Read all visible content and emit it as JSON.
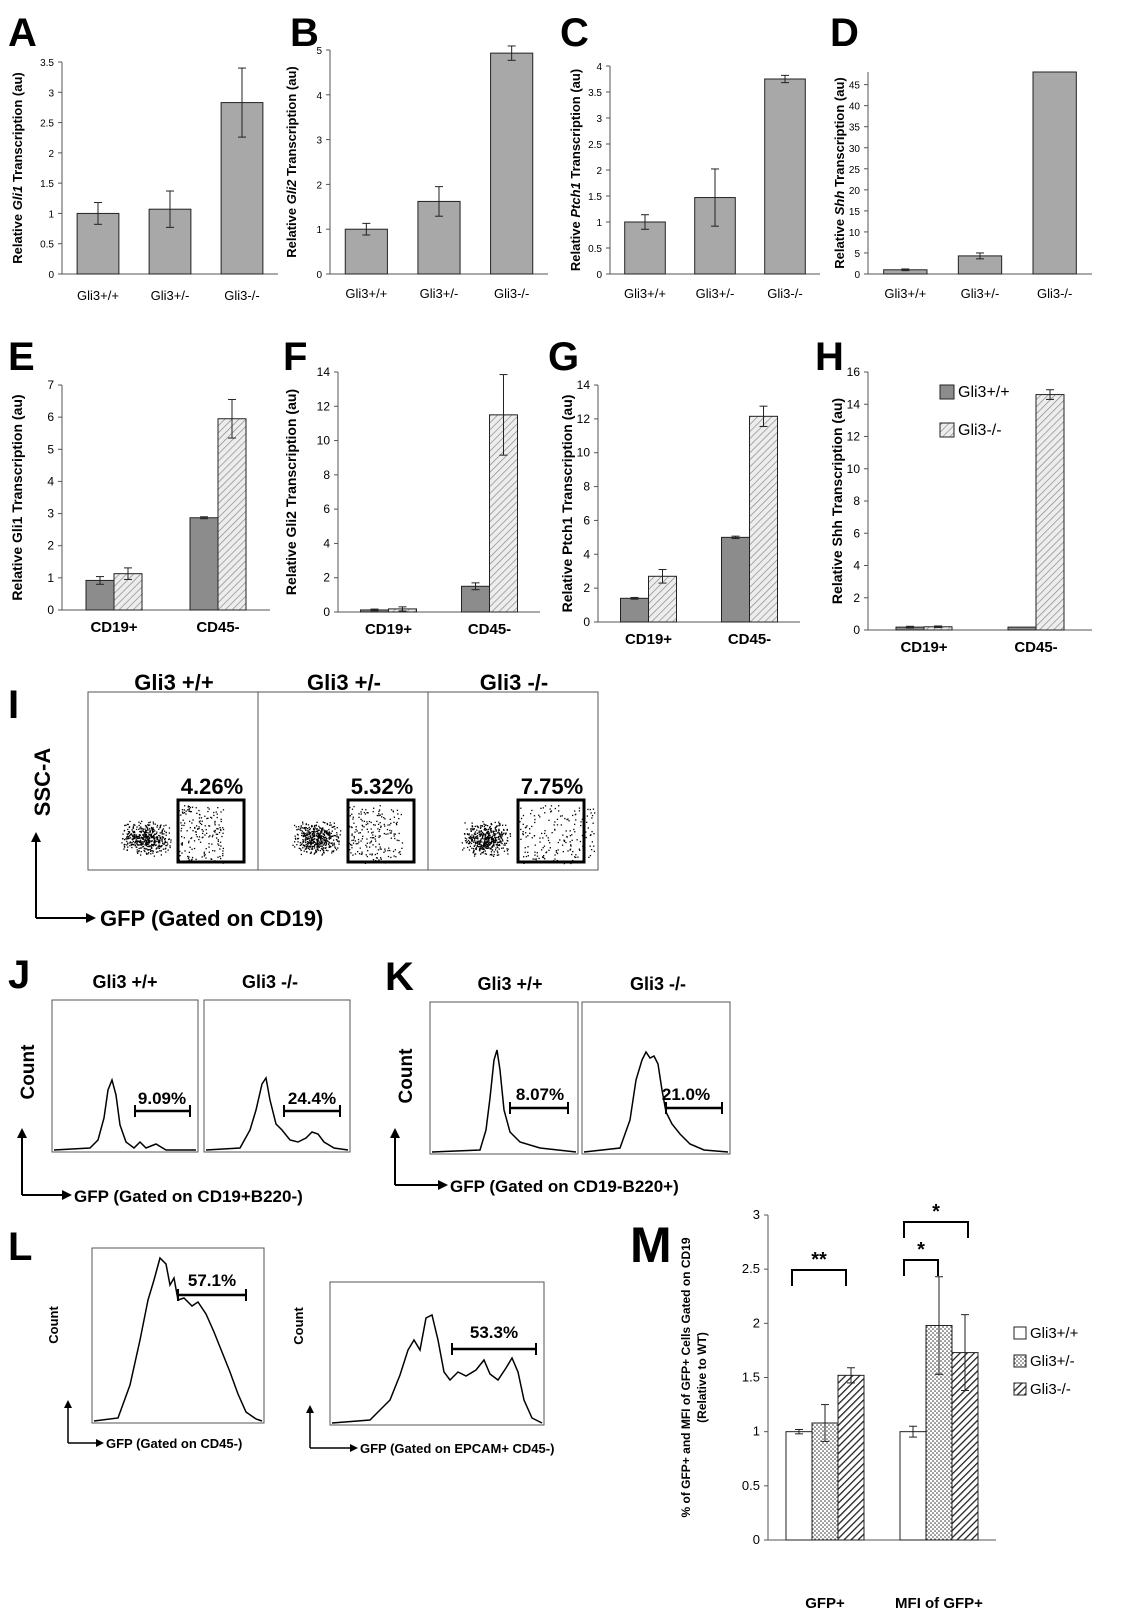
{
  "colors": {
    "gray": "#a8a8a8",
    "dark": "#8c8c8c",
    "line": "#000000",
    "hatch": "#bdbdbd"
  },
  "chart_data": [
    {
      "panel": "A",
      "type": "bar",
      "categories": [
        "Gli3+/+",
        "Gli3+/-",
        "Gli3-/-"
      ],
      "values": [
        1.0,
        1.07,
        2.83
      ],
      "errors": [
        0.18,
        0.3,
        0.57
      ],
      "ylabel_pre": "Relative ",
      "ylabel_gene": "Gli1",
      "ylabel_post": " Transcription (au)",
      "ylim": [
        0,
        3.5
      ],
      "ticks": [
        "0",
        "0.5",
        "1",
        "1.5",
        "2",
        "2.5",
        "3",
        "3.5"
      ]
    },
    {
      "panel": "B",
      "type": "bar",
      "categories": [
        "Gli3+/+",
        "Gli3+/-",
        "Gli3-/-"
      ],
      "values": [
        1.0,
        1.62,
        4.93
      ],
      "errors": [
        0.13,
        0.33,
        0.16
      ],
      "ylabel_pre": "Relative ",
      "ylabel_gene": "Gli2",
      "ylabel_post": " Transcription (au)",
      "ylim": [
        0,
        5
      ],
      "ticks": [
        "0",
        "1",
        "2",
        "3",
        "4",
        "5"
      ]
    },
    {
      "panel": "C",
      "type": "bar",
      "categories": [
        "Gli3+/+",
        "Gli3+/-",
        "Gli3-/-"
      ],
      "values": [
        1.0,
        1.47,
        3.75
      ],
      "errors": [
        0.14,
        0.55,
        0.07
      ],
      "ylabel_pre": "Relative ",
      "ylabel_gene": "Ptch1",
      "ylabel_post": " Transcription (au)",
      "ylim": [
        0,
        4
      ],
      "ticks": [
        "0",
        "0.5",
        "1",
        "1.5",
        "2",
        "2.5",
        "3",
        "3.5",
        "4"
      ]
    },
    {
      "panel": "D",
      "type": "bar",
      "categories": [
        "Gli3+/+",
        "Gli3+/-",
        "Gli3-/-"
      ],
      "values": [
        1.0,
        4.3,
        48.0
      ],
      "errors": [
        0.2,
        0.7,
        0.0
      ],
      "ylabel_pre": "Relative ",
      "ylabel_gene": "Shh",
      "ylabel_post": " Transcription (au)",
      "ylim": [
        0,
        48
      ],
      "ticks": [
        "0",
        "5",
        "10",
        "15",
        "20",
        "25",
        "30",
        "35",
        "40",
        "45"
      ]
    },
    {
      "panel": "E",
      "type": "bar",
      "categories": [
        "CD19+",
        "CD45-"
      ],
      "series": [
        {
          "values": [
            0.92,
            2.87
          ],
          "errors": [
            0.12,
            0.03
          ]
        },
        {
          "values": [
            1.13,
            5.95
          ],
          "errors": [
            0.18,
            0.6
          ]
        }
      ],
      "ylabel": "Relative Gli1 Transcription (au)",
      "ylim": [
        0,
        7
      ],
      "ticks": [
        "0",
        "1",
        "2",
        "3",
        "4",
        "5",
        "6",
        "7"
      ]
    },
    {
      "panel": "F",
      "type": "bar",
      "categories": [
        "CD19+",
        "CD45-"
      ],
      "series": [
        {
          "values": [
            0.12,
            1.5
          ],
          "errors": [
            0.05,
            0.2
          ]
        },
        {
          "values": [
            0.18,
            11.5
          ],
          "errors": [
            0.12,
            2.35
          ]
        }
      ],
      "ylabel": "Relative Gli2 Transcription (au)",
      "ylim": [
        0,
        14
      ],
      "ticks": [
        "0",
        "2",
        "4",
        "6",
        "8",
        "10",
        "12",
        "14"
      ]
    },
    {
      "panel": "G",
      "type": "bar",
      "categories": [
        "CD19+",
        "CD45-"
      ],
      "series": [
        {
          "values": [
            1.4,
            5.0
          ],
          "errors": [
            0.05,
            0.07
          ]
        },
        {
          "values": [
            2.7,
            12.15
          ],
          "errors": [
            0.4,
            0.6
          ]
        }
      ],
      "ylabel": "Relative Ptch1 Transcription (au)",
      "ylim": [
        0,
        14
      ],
      "ticks": [
        "0",
        "2",
        "4",
        "6",
        "8",
        "10",
        "12",
        "14"
      ]
    },
    {
      "panel": "H",
      "type": "bar",
      "categories": [
        "CD19+",
        "CD45-"
      ],
      "series": [
        {
          "name": "Gli3+/+",
          "values": [
            0.18,
            0.18
          ],
          "errors": [
            0.05,
            0.0
          ]
        },
        {
          "name": "Gli3-/-",
          "values": [
            0.2,
            14.6
          ],
          "errors": [
            0.05,
            0.3
          ]
        }
      ],
      "ylabel": "Relative Shh Transcription (au)",
      "ylim": [
        0,
        16
      ],
      "ticks": [
        "0",
        "2",
        "4",
        "6",
        "8",
        "10",
        "12",
        "14",
        "16"
      ]
    },
    {
      "panel": "M",
      "type": "bar",
      "categories": [
        "GFP+",
        "MFI of GFP+"
      ],
      "series": [
        {
          "name": "Gli3+/+",
          "values": [
            1.0,
            1.0
          ],
          "errors": [
            0.02,
            0.05
          ]
        },
        {
          "name": "Gli3+/-",
          "values": [
            1.08,
            1.98
          ],
          "errors": [
            0.17,
            0.45
          ]
        },
        {
          "name": "Gli3-/-",
          "values": [
            1.52,
            1.73
          ],
          "errors": [
            0.07,
            0.35
          ]
        }
      ],
      "ylabel1": "% of GFP+ and MFI of GFP+ Cells Gated on CD19",
      "ylabel2": "(Relative to WT)",
      "ylim": [
        0,
        3
      ],
      "ticks": [
        "0",
        "0.5",
        "1",
        "1.5",
        "2",
        "2.5",
        "3"
      ],
      "sig": [
        "**",
        "*",
        "*"
      ]
    }
  ],
  "flow": {
    "I": {
      "titles": [
        "Gli3 +/+",
        "Gli3 +/-",
        "Gli3 -/-"
      ],
      "percents": [
        "4.26%",
        "5.32%",
        "7.75%"
      ],
      "ylabel": "SSC-A",
      "xlabel": "GFP (Gated on CD19)"
    },
    "J": {
      "titles": [
        "Gli3 +/+",
        "Gli3 -/-"
      ],
      "percents": [
        "9.09%",
        "24.4%"
      ],
      "ylabel": "Count",
      "xlabel": "GFP (Gated on CD19+B220-)"
    },
    "K": {
      "titles": [
        "Gli3 +/+",
        "Gli3 -/-"
      ],
      "percents": [
        "8.07%",
        "21.0%"
      ],
      "ylabel": "Count",
      "xlabel": "GFP (Gated on CD19-B220+)"
    },
    "L": {
      "percents": [
        "57.1%",
        "53.3%"
      ],
      "ylabel": "Count",
      "xlabels": [
        "GFP (Gated on CD45-)",
        "GFP (Gated on EPCAM+ CD45-)"
      ]
    }
  }
}
